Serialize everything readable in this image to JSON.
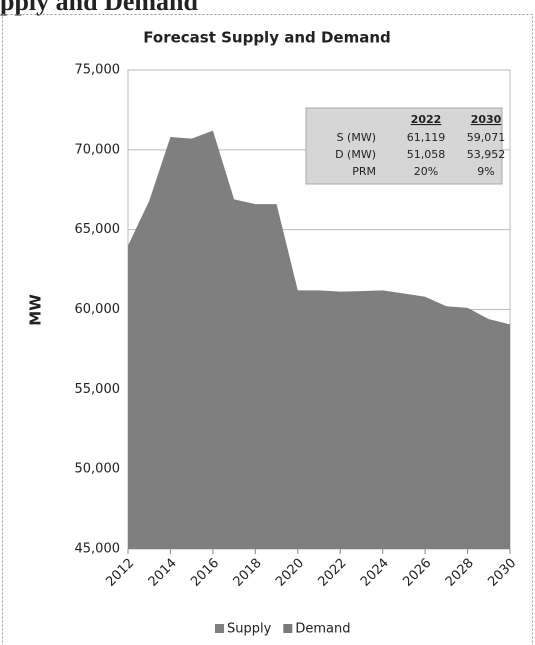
{
  "heading": "pply and Demand",
  "chart_data": {
    "type": "area",
    "title": "Forecast Supply and Demand",
    "y_label": "MW",
    "x": [
      2012,
      2013,
      2014,
      2015,
      2016,
      2017,
      2018,
      2019,
      2020,
      2021,
      2022,
      2023,
      2024,
      2025,
      2026,
      2027,
      2028,
      2029,
      2030
    ],
    "xlim": [
      2012,
      2030
    ],
    "xticks": [
      2012,
      2014,
      2016,
      2018,
      2020,
      2022,
      2024,
      2026,
      2028,
      2030
    ],
    "ylim": [
      45000,
      75000
    ],
    "yticks": [
      {
        "value": 45000,
        "label": "45,000"
      },
      {
        "value": 50000,
        "label": "50,000"
      },
      {
        "value": 55000,
        "label": "55,000"
      },
      {
        "value": 60000,
        "label": "60,000"
      },
      {
        "value": 65000,
        "label": "65,000"
      },
      {
        "value": 70000,
        "label": "70,000"
      },
      {
        "value": 75000,
        "label": "75,000"
      }
    ],
    "series": [
      {
        "name": "Supply",
        "color": "#7f7f7f",
        "values": [
          64000,
          66800,
          70800,
          70700,
          71200,
          66900,
          66600,
          66600,
          61200,
          61200,
          61119,
          61150,
          61200,
          61000,
          60800,
          60200,
          60100,
          59400,
          59071
        ]
      },
      {
        "name": "Demand",
        "color": "#7a7a7a",
        "values": [
          null,
          null,
          null,
          null,
          null,
          null,
          null,
          null,
          null,
          null,
          null,
          null,
          null,
          null,
          null,
          null,
          null,
          null,
          null
        ]
      }
    ],
    "legend": "bottom",
    "table": {
      "columns": [
        "2022",
        "2030"
      ],
      "rows": [
        {
          "label": "S (MW)",
          "cells": [
            "61,119",
            "59,071"
          ]
        },
        {
          "label": "D (MW)",
          "cells": [
            "51,058",
            "53,952"
          ]
        },
        {
          "label": "PRM",
          "cells": [
            "20%",
            "9%"
          ]
        }
      ]
    }
  }
}
